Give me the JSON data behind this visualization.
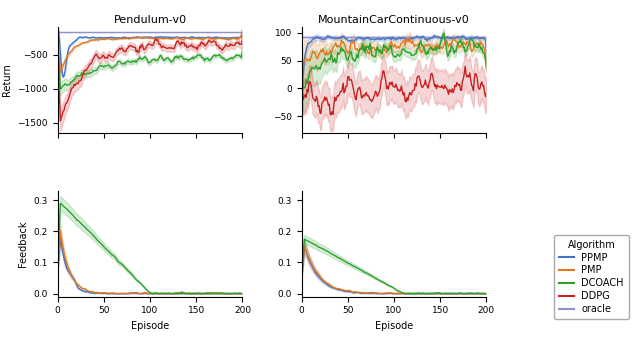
{
  "colors": {
    "PPMP": "#4472c4",
    "PMP": "#e07820",
    "DCOACH": "#2ca02c",
    "DDPG": "#c82020",
    "oracle": "#9090cc"
  },
  "pendulum_title": "Pendulum-v0",
  "mcc_title": "MountainCarContinuous-v0",
  "xlabel": "Episode",
  "ylabel_return": "Return",
  "ylabel_feedback": "Feedback",
  "legend_title": "Algorithm",
  "legend_entries": [
    "PPMP",
    "PMP",
    "DCOACH",
    "DDPG",
    "oracle"
  ]
}
